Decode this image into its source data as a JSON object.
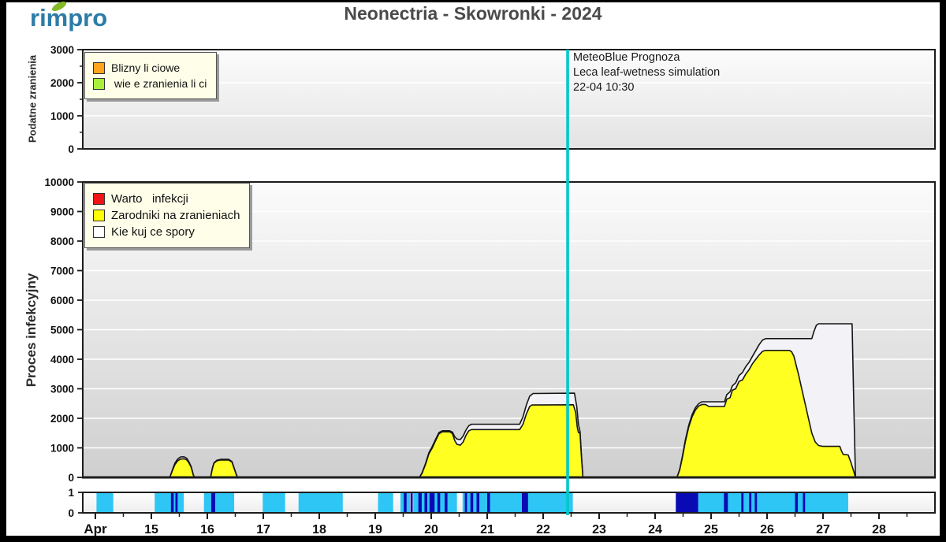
{
  "logo": {
    "text": "rimpro"
  },
  "title": "Neonectria - Skowronki - 2024",
  "annotation": {
    "line1": "MeteoBlue Prognoza",
    "line2": "Leca leaf-wetness simulation",
    "line3": "22-04 10:30"
  },
  "now_line": {
    "day": 22.4375,
    "color": "#00C9C9",
    "label": "22-04 10:30"
  },
  "x_axis": {
    "month": "Apr",
    "domain": [
      13.775,
      29.0
    ],
    "major_ticks": [
      {
        "d": 14,
        "label": "Apr"
      },
      {
        "d": 15,
        "label": "15"
      },
      {
        "d": 16,
        "label": "16"
      },
      {
        "d": 17,
        "label": "17"
      },
      {
        "d": 18,
        "label": "18"
      },
      {
        "d": 19,
        "label": "19"
      },
      {
        "d": 20,
        "label": "20"
      },
      {
        "d": 21,
        "label": "21"
      },
      {
        "d": 22,
        "label": "22"
      },
      {
        "d": 23,
        "label": "23"
      },
      {
        "d": 24,
        "label": "24"
      },
      {
        "d": 25,
        "label": "25"
      },
      {
        "d": 26,
        "label": "26"
      },
      {
        "d": 27,
        "label": "27"
      },
      {
        "d": 28,
        "label": "28"
      }
    ],
    "minor_ticks": [
      14.5,
      15.5,
      16.5,
      17.5,
      18.5,
      19.5,
      20.5,
      21.5,
      22.5,
      23.5,
      24.5,
      25.5,
      26.5,
      27.5,
      28.5
    ]
  },
  "chart_data": [
    {
      "id": "wounds",
      "type": "area",
      "ylabel": "Podatne zranienia",
      "ylim": [
        0,
        3000
      ],
      "ytick_step": 1000,
      "ytick_minor_step": 500,
      "grid": true,
      "legend_position": "top-left",
      "legend": [
        {
          "label": "Blizny li ciowe",
          "color": "#FFA41C"
        },
        {
          "label": " wie e zranienia li ci",
          "color": "#A8F03C"
        }
      ],
      "series": [
        {
          "name": "Blizny li ciowe",
          "color": "#FFA41C",
          "polygons": []
        },
        {
          "name": " wie e zranienia li ci",
          "color": "#A8F03C",
          "polygons": []
        }
      ]
    },
    {
      "id": "infection",
      "type": "area",
      "ylabel": "Proces infekcyjny",
      "ylim": [
        0,
        10000
      ],
      "ytick_step": 1000,
      "grid": true,
      "legend_position": "top-left",
      "legend": [
        {
          "label": "Warto   infekcji",
          "color": "#F01414"
        },
        {
          "label": "Zarodniki na zranieniach",
          "color": "#FFFF00"
        },
        {
          "label": "Kie kuj ce spory",
          "color": "#FFFFFF"
        }
      ],
      "series": [
        {
          "name": "Kie kuj ce spory",
          "color": "#F2F2F7",
          "polygons": [
            [
              [
                15.33,
                0
              ],
              [
                15.38,
                280
              ],
              [
                15.42,
                480
              ],
              [
                15.47,
                620
              ],
              [
                15.52,
                690
              ],
              [
                15.58,
                700
              ],
              [
                15.63,
                650
              ],
              [
                15.67,
                540
              ],
              [
                15.71,
                370
              ],
              [
                15.75,
                90
              ],
              [
                15.77,
                0
              ]
            ],
            [
              [
                16.06,
                0
              ],
              [
                16.09,
                320
              ],
              [
                16.12,
                500
              ],
              [
                16.17,
                580
              ],
              [
                16.24,
                610
              ],
              [
                16.38,
                610
              ],
              [
                16.44,
                540
              ],
              [
                16.48,
                310
              ],
              [
                16.52,
                90
              ],
              [
                16.54,
                0
              ]
            ],
            [
              [
                19.79,
                0
              ],
              [
                19.84,
                170
              ],
              [
                19.9,
                480
              ],
              [
                19.96,
                840
              ],
              [
                20.02,
                1050
              ],
              [
                20.08,
                1300
              ],
              [
                20.14,
                1520
              ],
              [
                20.2,
                1580
              ],
              [
                20.33,
                1580
              ],
              [
                20.38,
                1530
              ],
              [
                20.42,
                1380
              ],
              [
                20.46,
                1300
              ],
              [
                20.52,
                1280
              ],
              [
                20.57,
                1400
              ],
              [
                20.62,
                1600
              ],
              [
                20.67,
                1750
              ],
              [
                20.72,
                1800
              ],
              [
                21.58,
                1800
              ],
              [
                21.64,
                2050
              ],
              [
                21.7,
                2450
              ],
              [
                21.76,
                2750
              ],
              [
                21.82,
                2840
              ],
              [
                22.56,
                2850
              ],
              [
                22.6,
                2400
              ],
              [
                22.63,
                1800
              ],
              [
                22.66,
                1550
              ],
              [
                22.68,
                850
              ],
              [
                22.71,
                0
              ]
            ],
            [
              [
                24.39,
                0
              ],
              [
                24.44,
                270
              ],
              [
                24.49,
                740
              ],
              [
                24.54,
                1260
              ],
              [
                24.6,
                1760
              ],
              [
                24.66,
                2120
              ],
              [
                24.72,
                2360
              ],
              [
                24.78,
                2500
              ],
              [
                24.84,
                2560
              ],
              [
                25.24,
                2560
              ],
              [
                25.28,
                2800
              ],
              [
                25.34,
                2900
              ],
              [
                25.38,
                3100
              ],
              [
                25.44,
                3200
              ],
              [
                25.5,
                3450
              ],
              [
                25.56,
                3550
              ],
              [
                25.62,
                3750
              ],
              [
                25.68,
                3900
              ],
              [
                25.74,
                4100
              ],
              [
                25.8,
                4300
              ],
              [
                25.86,
                4500
              ],
              [
                25.92,
                4650
              ],
              [
                25.98,
                4700
              ],
              [
                26.8,
                4700
              ],
              [
                26.84,
                4950
              ],
              [
                26.88,
                5150
              ],
              [
                26.92,
                5200
              ],
              [
                27.52,
                5200
              ],
              [
                27.55,
                2500
              ],
              [
                27.58,
                0
              ]
            ]
          ]
        },
        {
          "name": "Zarodniki na zranieniach",
          "color": "#FFFF22",
          "polygons": [
            [
              [
                15.33,
                0
              ],
              [
                15.38,
                250
              ],
              [
                15.42,
                430
              ],
              [
                15.47,
                560
              ],
              [
                15.52,
                620
              ],
              [
                15.58,
                630
              ],
              [
                15.63,
                600
              ],
              [
                15.67,
                500
              ],
              [
                15.71,
                350
              ],
              [
                15.75,
                80
              ],
              [
                15.77,
                0
              ]
            ],
            [
              [
                16.06,
                0
              ],
              [
                16.09,
                300
              ],
              [
                16.12,
                480
              ],
              [
                16.17,
                560
              ],
              [
                16.24,
                590
              ],
              [
                16.38,
                590
              ],
              [
                16.44,
                520
              ],
              [
                16.48,
                300
              ],
              [
                16.52,
                80
              ],
              [
                16.54,
                0
              ]
            ],
            [
              [
                19.79,
                0
              ],
              [
                19.84,
                150
              ],
              [
                19.9,
                450
              ],
              [
                19.96,
                800
              ],
              [
                20.02,
                1000
              ],
              [
                20.08,
                1250
              ],
              [
                20.14,
                1480
              ],
              [
                20.2,
                1545
              ],
              [
                20.33,
                1545
              ],
              [
                20.38,
                1480
              ],
              [
                20.42,
                1250
              ],
              [
                20.46,
                1120
              ],
              [
                20.52,
                1090
              ],
              [
                20.57,
                1200
              ],
              [
                20.62,
                1420
              ],
              [
                20.67,
                1580
              ],
              [
                20.72,
                1620
              ],
              [
                21.58,
                1620
              ],
              [
                21.64,
                1800
              ],
              [
                21.7,
                2150
              ],
              [
                21.76,
                2400
              ],
              [
                21.8,
                2450
              ],
              [
                22.54,
                2460
              ],
              [
                22.58,
                2200
              ],
              [
                22.61,
                1700
              ],
              [
                22.63,
                1520
              ],
              [
                22.66,
                1500
              ],
              [
                22.68,
                800
              ],
              [
                22.71,
                0
              ]
            ],
            [
              [
                24.39,
                0
              ],
              [
                24.44,
                250
              ],
              [
                24.49,
                700
              ],
              [
                24.54,
                1200
              ],
              [
                24.6,
                1700
              ],
              [
                24.66,
                2050
              ],
              [
                24.72,
                2280
              ],
              [
                24.78,
                2420
              ],
              [
                24.84,
                2470
              ],
              [
                24.9,
                2470
              ],
              [
                24.96,
                2400
              ],
              [
                25.24,
                2400
              ],
              [
                25.28,
                2650
              ],
              [
                25.34,
                2700
              ],
              [
                25.38,
                2950
              ],
              [
                25.44,
                3000
              ],
              [
                25.5,
                3250
              ],
              [
                25.56,
                3300
              ],
              [
                25.62,
                3500
              ],
              [
                25.68,
                3650
              ],
              [
                25.74,
                3850
              ],
              [
                25.8,
                4000
              ],
              [
                25.86,
                4150
              ],
              [
                25.92,
                4270
              ],
              [
                25.98,
                4300
              ],
              [
                26.4,
                4300
              ],
              [
                26.44,
                4250
              ],
              [
                26.48,
                4100
              ],
              [
                26.52,
                3800
              ],
              [
                26.56,
                3500
              ],
              [
                26.62,
                3000
              ],
              [
                26.68,
                2500
              ],
              [
                26.74,
                2000
              ],
              [
                26.8,
                1500
              ],
              [
                26.86,
                1200
              ],
              [
                26.92,
                1080
              ],
              [
                27.0,
                1050
              ],
              [
                27.3,
                1050
              ],
              [
                27.33,
                900
              ],
              [
                27.36,
                780
              ],
              [
                27.45,
                760
              ],
              [
                27.5,
                500
              ],
              [
                27.55,
                200
              ],
              [
                27.58,
                0
              ]
            ]
          ]
        },
        {
          "name": "Warto   infekcji",
          "color": "#F01414",
          "polygons": []
        }
      ]
    },
    {
      "id": "leaf-wetness",
      "type": "strip",
      "ylim": [
        0,
        1
      ],
      "ytick_labels": [
        "0",
        "1"
      ],
      "wet_color": "#2DC6F5",
      "rain_color": "#0A0AB4",
      "wet_segments": [
        [
          14.02,
          14.32
        ],
        [
          15.06,
          15.58
        ],
        [
          15.94,
          16.48
        ],
        [
          16.99,
          17.39
        ],
        [
          17.63,
          18.42
        ],
        [
          19.05,
          19.32
        ],
        [
          19.45,
          19.62
        ],
        [
          19.68,
          20.46
        ],
        [
          20.56,
          22.53
        ],
        [
          24.77,
          27.45
        ]
      ],
      "rain_segments": [
        [
          15.35,
          15.4
        ],
        [
          15.43,
          15.47
        ],
        [
          16.07,
          16.14
        ],
        [
          19.51,
          19.56
        ],
        [
          19.63,
          19.67
        ],
        [
          19.77,
          19.83
        ],
        [
          19.88,
          19.93
        ],
        [
          19.97,
          20.06
        ],
        [
          20.11,
          20.16
        ],
        [
          20.24,
          20.29
        ],
        [
          20.6,
          20.64
        ],
        [
          20.7,
          20.75
        ],
        [
          20.81,
          20.86
        ],
        [
          21.0,
          21.05
        ],
        [
          21.62,
          21.73
        ],
        [
          24.37,
          24.77
        ],
        [
          25.23,
          25.3
        ],
        [
          25.54,
          25.58
        ],
        [
          25.68,
          25.72
        ],
        [
          25.78,
          25.82
        ],
        [
          26.5,
          26.55
        ],
        [
          26.64,
          26.68
        ]
      ]
    }
  ],
  "colors": {
    "logo_blue": "#2C7CA6",
    "logo_leaf_green": "#84BA28",
    "title_gray": "#4A4A4A",
    "legend_bg": "#FFFFE9",
    "panel_border": "#1c1c1c",
    "now_line_cyan": "#00C9C9",
    "wetness_cyan": "#2DC6F5",
    "rain_navy": "#0A0AB4",
    "spores_yellow": "#FFFF22",
    "germinating_white": "#F2F2F7",
    "infection_red": "#F01414",
    "wounds_orange": "#FFA41C",
    "fresh_wounds_green": "#A8F03C"
  }
}
